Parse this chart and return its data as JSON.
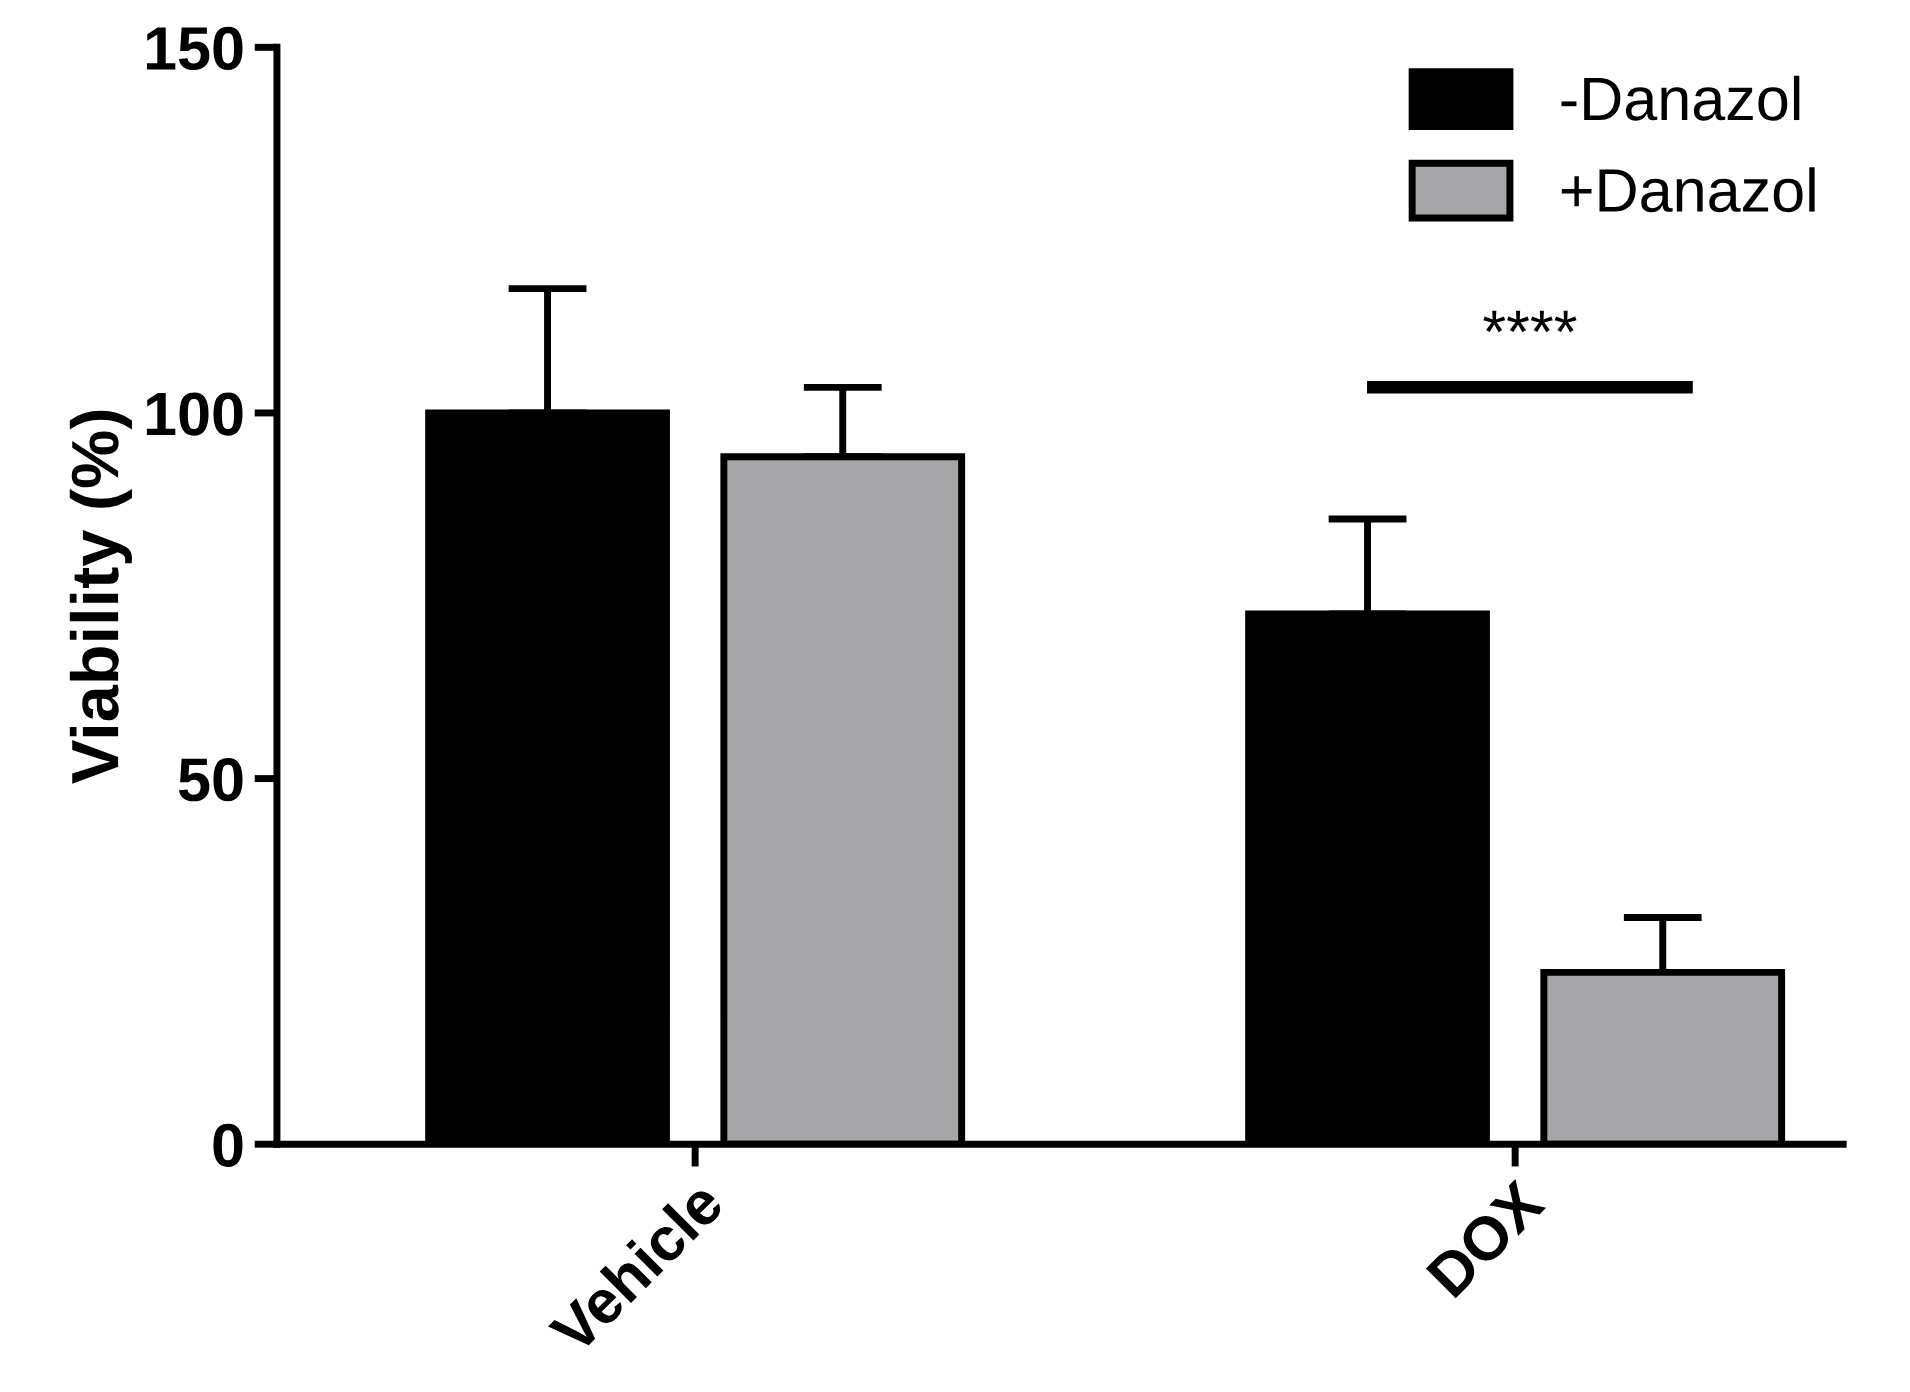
{
  "chart_data": {
    "type": "bar",
    "ylabel": "Viability (%)",
    "categories": [
      "Vehicle",
      "DOX"
    ],
    "series": [
      {
        "name": "-Danazol",
        "color": "#000000",
        "values": [
          100,
          72.5
        ],
        "errors": [
          [
            100,
            117
          ],
          [
            72.5,
            85.5
          ]
        ]
      },
      {
        "name": "+Danazol",
        "color": "#a6a6a8",
        "values": [
          94,
          23.5
        ],
        "errors": [
          [
            94,
            103.5
          ],
          [
            23.5,
            31
          ]
        ]
      }
    ],
    "ylim": [
      0,
      150
    ],
    "yticks": [
      0,
      50,
      100,
      150
    ],
    "grid": false,
    "legend": "top right",
    "annotations": [
      "****"
    ]
  }
}
